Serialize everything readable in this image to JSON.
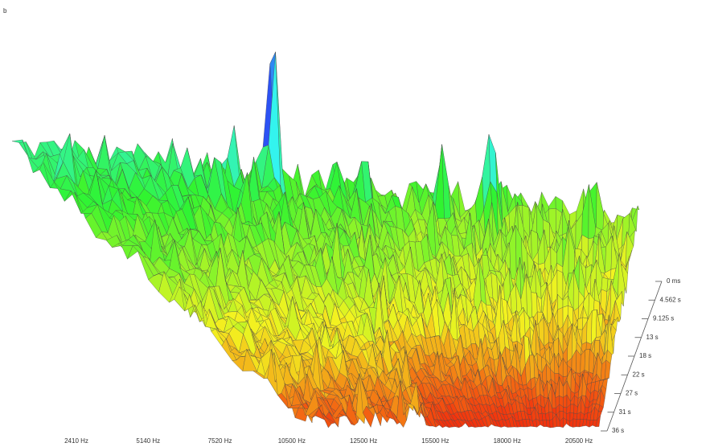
{
  "corner_label": "b",
  "frequency_axis": {
    "labels": [
      "2410 Hz",
      "5140 Hz",
      "7520 Hz",
      "10500 Hz",
      "12500 Hz",
      "15500 Hz",
      "18000 Hz",
      "20500 Hz"
    ]
  },
  "time_axis": {
    "labels": [
      "0 ms",
      "4.562 s",
      "9.125 s",
      "13 s",
      "18 s",
      "22 s",
      "27 s",
      "31 s",
      "36 s"
    ]
  }
}
